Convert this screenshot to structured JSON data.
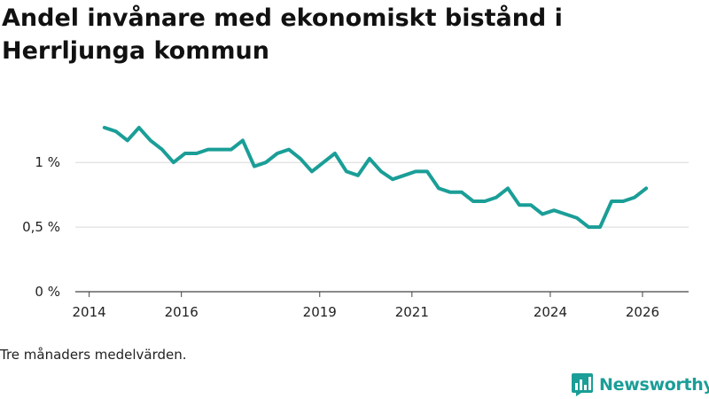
{
  "chart_data": {
    "type": "line",
    "title": "Andel invånare med ekonomiskt bistånd i Herrljunga kommun",
    "note": "Tre månaders medelvärden.",
    "xlabel": "",
    "ylabel": "",
    "xlim": [
      2013.7,
      2027.0
    ],
    "ylim": [
      0,
      1.42
    ],
    "x_ticks": [
      {
        "value": 2014,
        "label": "2014"
      },
      {
        "value": 2016,
        "label": "2016"
      },
      {
        "value": 2019,
        "label": "2019"
      },
      {
        "value": 2021,
        "label": "2021"
      },
      {
        "value": 2024,
        "label": "2024"
      },
      {
        "value": 2026,
        "label": "2026"
      }
    ],
    "y_ticks": [
      {
        "value": 0,
        "label": "0 %"
      },
      {
        "value": 0.5,
        "label": "0,5 %"
      },
      {
        "value": 1,
        "label": "1 %"
      }
    ],
    "grid": true,
    "series": [
      {
        "name": "Andel invånare med ekonomiskt bistånd",
        "color": "#1a9e97",
        "x": [
          2014.33,
          2014.58,
          2014.83,
          2015.08,
          2015.33,
          2015.58,
          2015.83,
          2016.08,
          2016.33,
          2016.58,
          2016.83,
          2017.08,
          2017.33,
          2017.58,
          2017.83,
          2018.08,
          2018.33,
          2018.58,
          2018.83,
          2019.08,
          2019.33,
          2019.58,
          2019.83,
          2020.08,
          2020.33,
          2020.58,
          2020.83,
          2021.08,
          2021.33,
          2021.58,
          2021.83,
          2022.08,
          2022.33,
          2022.58,
          2022.83,
          2023.08,
          2023.33,
          2023.58,
          2023.83,
          2024.08,
          2024.33,
          2024.58,
          2024.83,
          2025.08,
          2025.33,
          2025.58,
          2025.83,
          2026.08
        ],
        "values": [
          1.27,
          1.24,
          1.17,
          1.27,
          1.17,
          1.1,
          1.0,
          1.07,
          1.07,
          1.1,
          1.1,
          1.1,
          1.17,
          0.97,
          1.0,
          1.07,
          1.1,
          1.03,
          0.93,
          1.0,
          1.07,
          0.93,
          0.9,
          1.03,
          0.93,
          0.87,
          0.9,
          0.93,
          0.93,
          0.8,
          0.77,
          0.77,
          0.7,
          0.7,
          0.73,
          0.8,
          0.67,
          0.67,
          0.6,
          0.63,
          0.6,
          0.57,
          0.5,
          0.5,
          0.7,
          0.7,
          0.73,
          0.8
        ]
      }
    ]
  },
  "footer": {
    "brand": "Newsworthy",
    "brand_color": "#1a9e97"
  }
}
